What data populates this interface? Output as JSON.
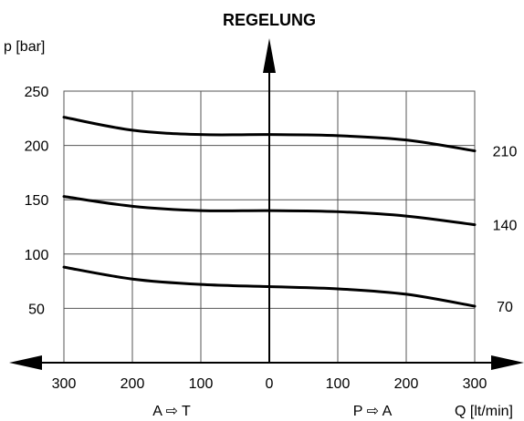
{
  "chart_data": {
    "type": "line",
    "title": "REGELUNG",
    "ylabel": "p [bar]",
    "xlabel": "Q [lt/min]",
    "direction_left_label": "A ⇨ T",
    "direction_right_label": "P ⇨ A",
    "x_ticks": [
      "300",
      "200",
      "100",
      "0",
      "100",
      "200",
      "300"
    ],
    "y_ticks": [
      "50",
      "100",
      "150",
      "200",
      "250"
    ],
    "xlim": [
      -300,
      300
    ],
    "ylim": [
      0,
      250
    ],
    "grid": true,
    "series": [
      {
        "name": "210",
        "x": [
          -300,
          -200,
          -100,
          0,
          100,
          200,
          300
        ],
        "y": [
          226,
          214,
          210,
          210,
          209,
          205,
          195
        ]
      },
      {
        "name": "140",
        "x": [
          -300,
          -200,
          -100,
          0,
          100,
          200,
          300
        ],
        "y": [
          153,
          144,
          140,
          140,
          139,
          135,
          127
        ]
      },
      {
        "name": "70",
        "x": [
          -300,
          -200,
          -100,
          0,
          100,
          200,
          300
        ],
        "y": [
          88,
          77,
          72,
          70,
          68,
          63,
          52
        ]
      }
    ]
  }
}
